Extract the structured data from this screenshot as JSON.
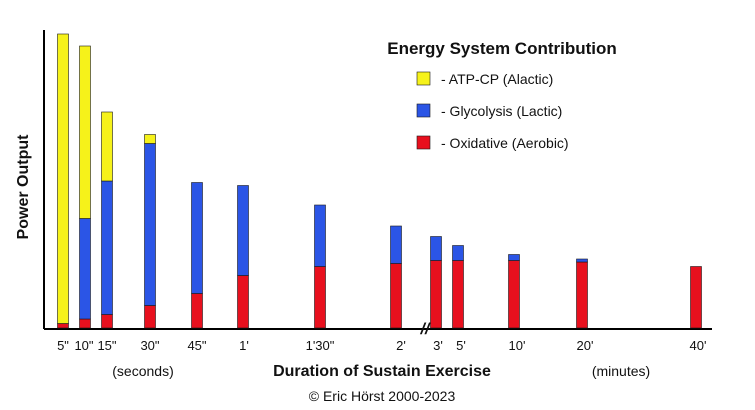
{
  "chart_data": {
    "type": "bar",
    "stacked": true,
    "title": "Energy System Contribution",
    "xlabel": "Duration of Sustain Exercise",
    "ylabel": "Power Output",
    "unit_left": "(seconds)",
    "unit_right": "(minutes)",
    "copyright": "© Eric Hörst 2000-2023",
    "axis_break_symbol": "//",
    "categories": [
      "5\"",
      "10\"",
      "15\"",
      "30\"",
      "45\"",
      "1'",
      "1'30\"",
      "2'",
      "3'",
      "5'",
      "10'",
      "20'",
      "40'"
    ],
    "series": [
      {
        "name": "- Oxidative (Aerobic)",
        "color": "#e8101e",
        "values": [
          1.5,
          3,
          4.5,
          7.5,
          11.5,
          17.5,
          20.5,
          21.5,
          22.5,
          22.5,
          22.5,
          22,
          20.5
        ]
      },
      {
        "name": "- Glycolysis (Lactic)",
        "color": "#2b55e6",
        "values": [
          0,
          33.5,
          44.5,
          54,
          37,
          30,
          20.5,
          12.5,
          8,
          5,
          2,
          1,
          0
        ]
      },
      {
        "name": "- ATP-CP (Alactic)",
        "color": "#f6f21a",
        "values": [
          96.5,
          57.5,
          23,
          3,
          0,
          0,
          0,
          0,
          0,
          0,
          0,
          0,
          0
        ]
      }
    ],
    "ylim": [
      0,
      100
    ],
    "grid": false,
    "legend_position": "top-right"
  }
}
